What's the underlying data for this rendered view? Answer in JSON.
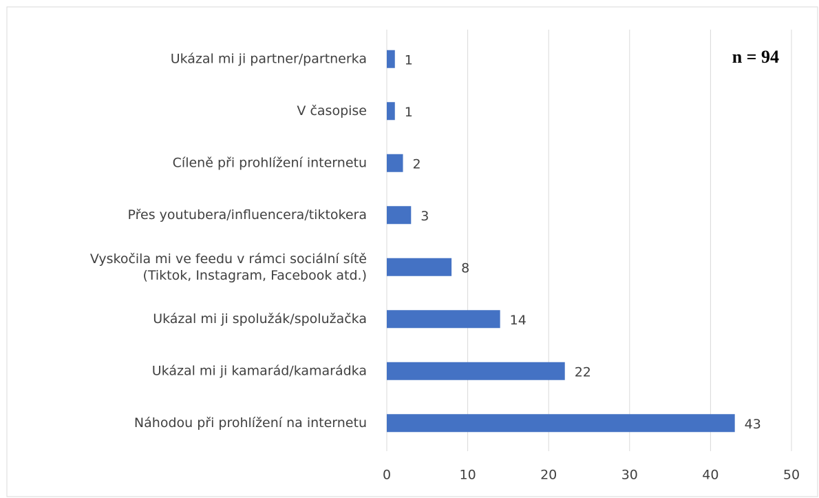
{
  "chart_data": {
    "type": "bar",
    "orientation": "horizontal",
    "annotation": "n = 94",
    "categories": [
      "Ukázal mi ji partner/partnerka",
      "V časopise",
      "Cíleně při prohlížení internetu",
      "Přes youtubera/influencera/tiktokera",
      "Vyskočila mi ve feedu v rámci sociální sítě\n(Tiktok, Instagram, Facebook atd.)",
      "Ukázal mi ji spolužák/spolužačka",
      "Ukázal mi ji kamarád/kamarádka",
      "Náhodou při prohlížení na internetu"
    ],
    "values": [
      1,
      1,
      2,
      3,
      8,
      14,
      22,
      43
    ],
    "color": "#4472c4",
    "xlim": [
      0,
      50
    ],
    "xticks": [
      0,
      10,
      20,
      30,
      40,
      50
    ],
    "grid": true
  }
}
